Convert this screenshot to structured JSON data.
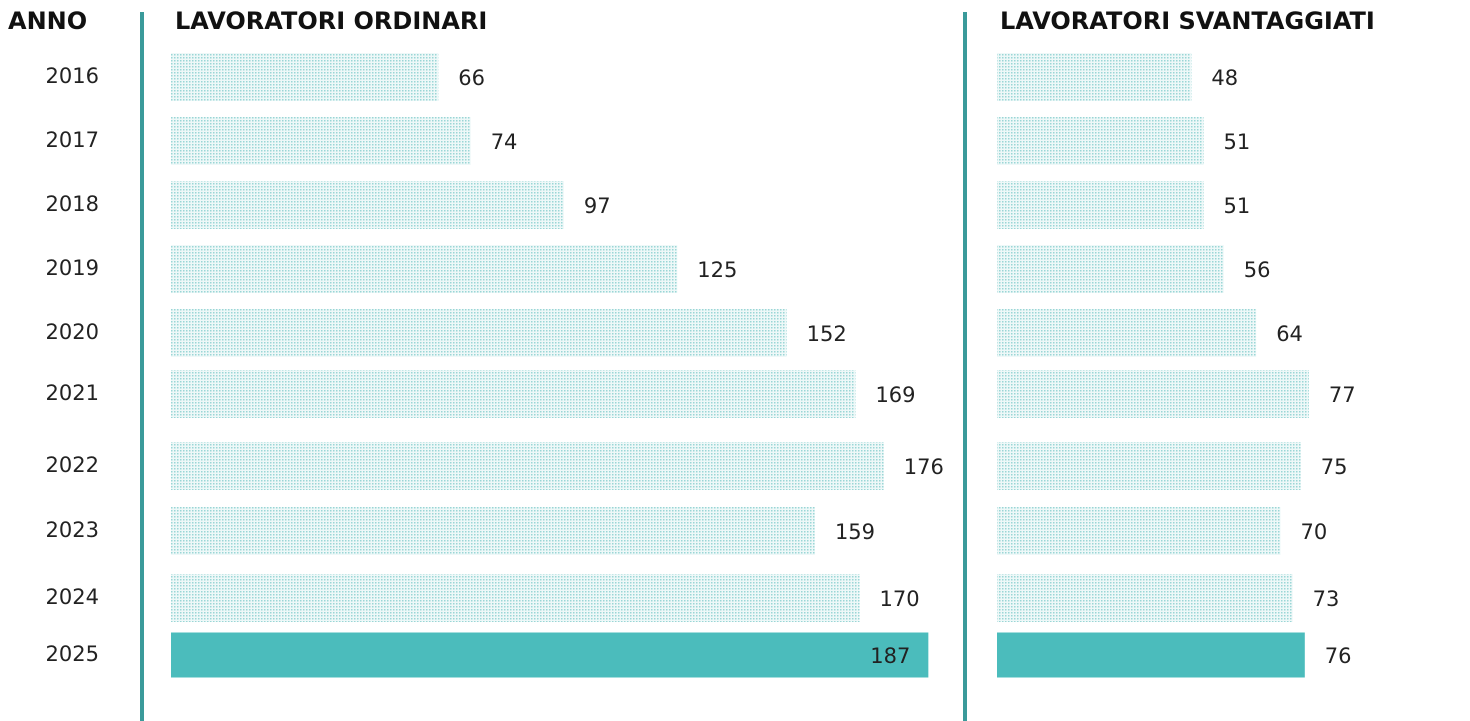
{
  "chart_data": {
    "type": "bar",
    "orientation": "horizontal",
    "category_label": "ANNO",
    "categories": [
      "2016",
      "2017",
      "2018",
      "2019",
      "2020",
      "2021",
      "2022",
      "2023",
      "2024",
      "2025"
    ],
    "series": [
      {
        "name": "LAVORATORI ORDINARI",
        "color": "#4bbcbc",
        "values": [
          66,
          74,
          97,
          125,
          152,
          169,
          176,
          159,
          170,
          187
        ]
      },
      {
        "name": "LAVORATORI SVANTAGGIATI",
        "color": "#4bbcbc",
        "values": [
          48,
          51,
          51,
          56,
          64,
          77,
          75,
          70,
          73,
          76
        ]
      }
    ]
  }
}
